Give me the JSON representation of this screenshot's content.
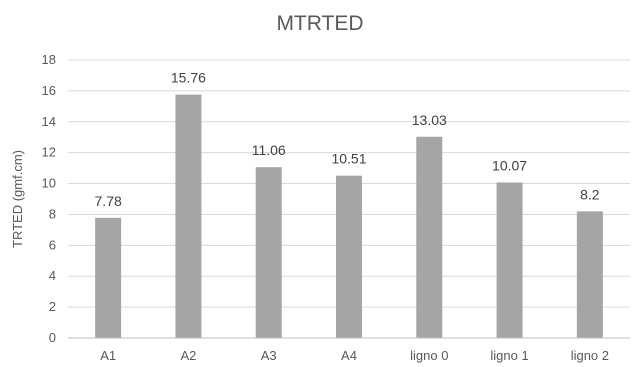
{
  "chart_data": {
    "type": "bar",
    "title": "MTRTED",
    "xlabel": "",
    "ylabel": "TRTED (gmf.cm)",
    "ylim": [
      0,
      18
    ],
    "yticks": [
      0,
      2,
      4,
      6,
      8,
      10,
      12,
      14,
      16,
      18
    ],
    "grid": true,
    "categories": [
      "A1",
      "A2",
      "A3",
      "A4",
      "ligno 0",
      "ligno 1",
      "ligno 2"
    ],
    "values": [
      7.78,
      15.76,
      11.06,
      10.51,
      13.03,
      10.07,
      8.2
    ],
    "data_labels": [
      "7.78",
      "15.76",
      "11.06",
      "10.51",
      "13.03",
      "10.07",
      "8.2"
    ],
    "bar_color": "#a5a5a5"
  }
}
